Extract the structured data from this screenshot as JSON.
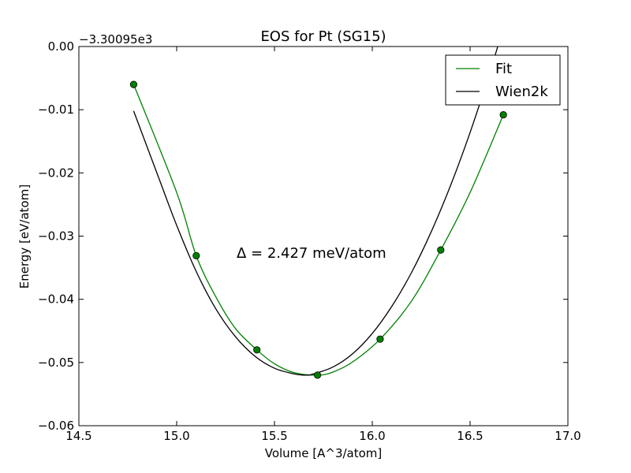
{
  "chart_data": {
    "type": "line",
    "title": "EOS for Pt (SG15)",
    "xlabel": "Volume [A^3/atom]",
    "ylabel": "Energy [eV/atom]",
    "y_offset_label": "−3.30095e3",
    "xlim": [
      14.5,
      17.0
    ],
    "ylim": [
      -0.06,
      0.0
    ],
    "x_ticks": [
      14.5,
      15.0,
      15.5,
      16.0,
      16.5,
      17.0
    ],
    "x_tick_labels": [
      "14.5",
      "15.0",
      "15.5",
      "16.0",
      "16.5",
      "17.0"
    ],
    "y_ticks": [
      0.0,
      -0.01,
      -0.02,
      -0.03,
      -0.04,
      -0.05,
      -0.06
    ],
    "y_tick_labels": [
      "0.00",
      "−0.01",
      "−0.02",
      "−0.03",
      "−0.04",
      "−0.05",
      "−0.06"
    ],
    "grid": false,
    "legend_position": "top-right",
    "annotation": "Δ = 2.427 meV/atom",
    "series": [
      {
        "name": "Fit",
        "color": "#008000",
        "x": [
          14.78,
          15.0,
          15.1,
          15.2,
          15.3,
          15.41,
          15.5,
          15.6,
          15.72,
          15.8,
          15.9,
          16.04,
          16.2,
          16.35,
          16.5,
          16.67
        ],
        "y": [
          -0.006,
          -0.0231,
          -0.0331,
          -0.0396,
          -0.0446,
          -0.048,
          -0.0502,
          -0.0516,
          -0.052,
          -0.0515,
          -0.0499,
          -0.0463,
          -0.0403,
          -0.0322,
          -0.0231,
          -0.0108
        ]
      },
      {
        "name": "Wien2k",
        "color": "#000000",
        "x": [
          14.78,
          14.9,
          15.0,
          15.1,
          15.2,
          15.3,
          15.4,
          15.5,
          15.6,
          15.66,
          15.7,
          15.8,
          15.9,
          16.0,
          16.1,
          16.2,
          16.3,
          16.4,
          16.5,
          16.6,
          16.67
        ],
        "y": [
          -0.0102,
          -0.0201,
          -0.0283,
          -0.0356,
          -0.0415,
          -0.0459,
          -0.049,
          -0.0509,
          -0.0518,
          -0.052,
          -0.0518,
          -0.0507,
          -0.0486,
          -0.0454,
          -0.0411,
          -0.0358,
          -0.0294,
          -0.022,
          -0.0136,
          -0.0042,
          0.003
        ]
      }
    ],
    "markers": {
      "series": "Fit",
      "color": "#008000",
      "x": [
        14.78,
        15.1,
        15.41,
        15.72,
        16.04,
        16.35,
        16.67
      ],
      "y": [
        -0.006,
        -0.0331,
        -0.048,
        -0.052,
        -0.0463,
        -0.0322,
        -0.0108
      ]
    }
  }
}
